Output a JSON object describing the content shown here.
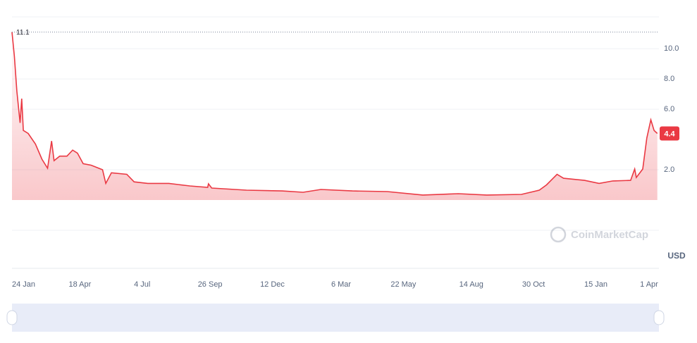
{
  "chart_data": {
    "type": "line",
    "x": [
      0,
      3,
      6,
      10,
      12,
      14,
      20,
      29,
      37,
      44,
      49,
      52,
      59,
      68,
      75,
      81,
      88,
      98,
      112,
      116,
      123,
      142,
      151,
      168,
      194,
      220,
      242,
      243,
      247,
      290,
      334,
      360,
      382,
      421,
      464,
      508,
      552,
      587,
      630,
      652,
      661,
      674,
      682,
      708,
      726,
      743,
      765,
      770,
      772,
      780,
      785,
      790,
      794,
      798
    ],
    "series": [
      {
        "color": "#ea3943",
        "values": [
          11.1,
          9.5,
          7.2,
          5.1,
          6.7,
          4.6,
          4.4,
          3.7,
          2.7,
          2.1,
          3.9,
          2.6,
          2.9,
          2.9,
          3.3,
          3.1,
          2.4,
          2.3,
          2.0,
          1.1,
          1.8,
          1.7,
          1.2,
          1.1,
          1.1,
          0.93,
          0.84,
          1.07,
          0.79,
          0.65,
          0.6,
          0.51,
          0.7,
          0.6,
          0.56,
          0.33,
          0.42,
          0.33,
          0.37,
          0.65,
          1.0,
          1.7,
          1.44,
          1.3,
          1.1,
          1.26,
          1.3,
          2.05,
          1.49,
          2.05,
          4.1,
          5.3,
          4.6,
          4.4
        ]
      }
    ],
    "xlim": [
      0,
      800
    ],
    "xticks": [
      {
        "value": 0,
        "label": "24 Jan"
      },
      {
        "value": 84,
        "label": "18 Apr"
      },
      {
        "value": 161,
        "label": "4 Jul"
      },
      {
        "value": 245,
        "label": "26 Sep"
      },
      {
        "value": 322,
        "label": "12 Dec"
      },
      {
        "value": 407,
        "label": "6 Mar"
      },
      {
        "value": 484,
        "label": "22 May"
      },
      {
        "value": 568,
        "label": "14 Aug"
      },
      {
        "value": 645,
        "label": "30 Oct"
      },
      {
        "value": 722,
        "label": "15 Jan"
      },
      {
        "value": 799,
        "label": "1 Apr"
      }
    ],
    "ylim": [
      0,
      12.1
    ],
    "yticks": [
      {
        "value": 2,
        "label": "2.0"
      },
      {
        "value": 6,
        "label": "6.0"
      },
      {
        "value": 8,
        "label": "8.0"
      },
      {
        "value": 10,
        "label": "10.0"
      }
    ],
    "grid": true,
    "max_label": "11.1",
    "current_label": "4.4",
    "currency": "USD",
    "watermark": "CoinMarketCap"
  }
}
